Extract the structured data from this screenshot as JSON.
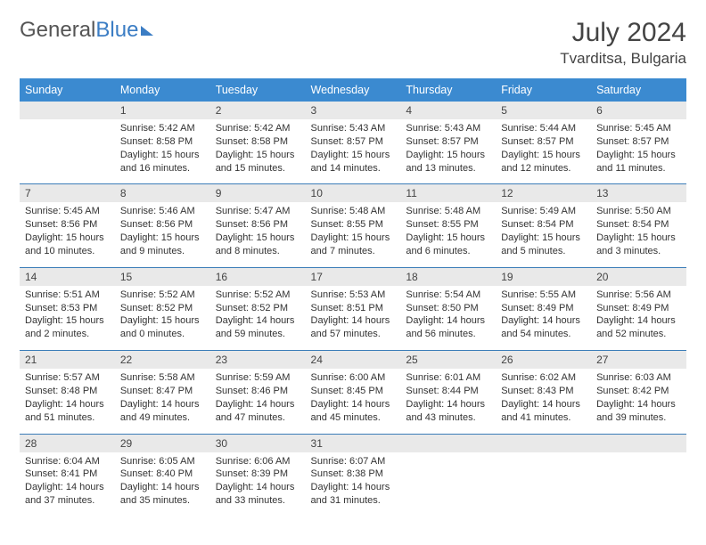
{
  "logo": {
    "text1": "General",
    "text2": "Blue"
  },
  "title": "July 2024",
  "location": "Tvarditsa, Bulgaria",
  "dayHeaders": [
    "Sunday",
    "Monday",
    "Tuesday",
    "Wednesday",
    "Thursday",
    "Friday",
    "Saturday"
  ],
  "colors": {
    "headerBg": "#3b8ad0",
    "headerText": "#ffffff",
    "dateRowBg": "#e9e9e9",
    "separator": "#3b7db8",
    "logoBlue": "#3b7dc4"
  },
  "weeks": [
    {
      "dates": [
        "",
        "1",
        "2",
        "3",
        "4",
        "5",
        "6"
      ],
      "info": [
        "",
        "Sunrise: 5:42 AM\nSunset: 8:58 PM\nDaylight: 15 hours and 16 minutes.",
        "Sunrise: 5:42 AM\nSunset: 8:58 PM\nDaylight: 15 hours and 15 minutes.",
        "Sunrise: 5:43 AM\nSunset: 8:57 PM\nDaylight: 15 hours and 14 minutes.",
        "Sunrise: 5:43 AM\nSunset: 8:57 PM\nDaylight: 15 hours and 13 minutes.",
        "Sunrise: 5:44 AM\nSunset: 8:57 PM\nDaylight: 15 hours and 12 minutes.",
        "Sunrise: 5:45 AM\nSunset: 8:57 PM\nDaylight: 15 hours and 11 minutes."
      ]
    },
    {
      "dates": [
        "7",
        "8",
        "9",
        "10",
        "11",
        "12",
        "13"
      ],
      "info": [
        "Sunrise: 5:45 AM\nSunset: 8:56 PM\nDaylight: 15 hours and 10 minutes.",
        "Sunrise: 5:46 AM\nSunset: 8:56 PM\nDaylight: 15 hours and 9 minutes.",
        "Sunrise: 5:47 AM\nSunset: 8:56 PM\nDaylight: 15 hours and 8 minutes.",
        "Sunrise: 5:48 AM\nSunset: 8:55 PM\nDaylight: 15 hours and 7 minutes.",
        "Sunrise: 5:48 AM\nSunset: 8:55 PM\nDaylight: 15 hours and 6 minutes.",
        "Sunrise: 5:49 AM\nSunset: 8:54 PM\nDaylight: 15 hours and 5 minutes.",
        "Sunrise: 5:50 AM\nSunset: 8:54 PM\nDaylight: 15 hours and 3 minutes."
      ]
    },
    {
      "dates": [
        "14",
        "15",
        "16",
        "17",
        "18",
        "19",
        "20"
      ],
      "info": [
        "Sunrise: 5:51 AM\nSunset: 8:53 PM\nDaylight: 15 hours and 2 minutes.",
        "Sunrise: 5:52 AM\nSunset: 8:52 PM\nDaylight: 15 hours and 0 minutes.",
        "Sunrise: 5:52 AM\nSunset: 8:52 PM\nDaylight: 14 hours and 59 minutes.",
        "Sunrise: 5:53 AM\nSunset: 8:51 PM\nDaylight: 14 hours and 57 minutes.",
        "Sunrise: 5:54 AM\nSunset: 8:50 PM\nDaylight: 14 hours and 56 minutes.",
        "Sunrise: 5:55 AM\nSunset: 8:49 PM\nDaylight: 14 hours and 54 minutes.",
        "Sunrise: 5:56 AM\nSunset: 8:49 PM\nDaylight: 14 hours and 52 minutes."
      ]
    },
    {
      "dates": [
        "21",
        "22",
        "23",
        "24",
        "25",
        "26",
        "27"
      ],
      "info": [
        "Sunrise: 5:57 AM\nSunset: 8:48 PM\nDaylight: 14 hours and 51 minutes.",
        "Sunrise: 5:58 AM\nSunset: 8:47 PM\nDaylight: 14 hours and 49 minutes.",
        "Sunrise: 5:59 AM\nSunset: 8:46 PM\nDaylight: 14 hours and 47 minutes.",
        "Sunrise: 6:00 AM\nSunset: 8:45 PM\nDaylight: 14 hours and 45 minutes.",
        "Sunrise: 6:01 AM\nSunset: 8:44 PM\nDaylight: 14 hours and 43 minutes.",
        "Sunrise: 6:02 AM\nSunset: 8:43 PM\nDaylight: 14 hours and 41 minutes.",
        "Sunrise: 6:03 AM\nSunset: 8:42 PM\nDaylight: 14 hours and 39 minutes."
      ]
    },
    {
      "dates": [
        "28",
        "29",
        "30",
        "31",
        "",
        "",
        ""
      ],
      "info": [
        "Sunrise: 6:04 AM\nSunset: 8:41 PM\nDaylight: 14 hours and 37 minutes.",
        "Sunrise: 6:05 AM\nSunset: 8:40 PM\nDaylight: 14 hours and 35 minutes.",
        "Sunrise: 6:06 AM\nSunset: 8:39 PM\nDaylight: 14 hours and 33 minutes.",
        "Sunrise: 6:07 AM\nSunset: 8:38 PM\nDaylight: 14 hours and 31 minutes.",
        "",
        "",
        ""
      ]
    }
  ]
}
